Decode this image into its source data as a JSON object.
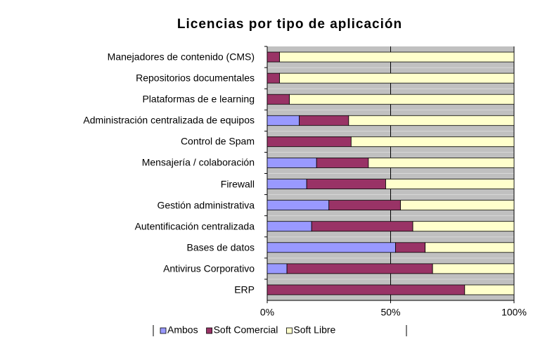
{
  "chart_data": {
    "type": "stacked_bar_horizontal",
    "title": "Licencias por tipo de aplicación",
    "categories": [
      "Manejadores de contenido (CMS)",
      "Repositorios documentales",
      "Plataformas de e learning",
      "Administración centralizada de equipos",
      "Control de Spam",
      "Mensajería / colaboración",
      "Firewall",
      "Gestión administrativa",
      "Autentificación centralizada",
      "Bases de datos",
      "Antivirus Corporativo",
      "ERP"
    ],
    "series": [
      {
        "name": "Ambos",
        "color": "#9999ff",
        "values": [
          0,
          0,
          0,
          13,
          0,
          20,
          16,
          25,
          18,
          52,
          8,
          0
        ]
      },
      {
        "name": "Soft Comercial",
        "color": "#993366",
        "values": [
          5,
          5,
          9,
          20,
          34,
          21,
          32,
          29,
          41,
          12,
          59,
          80
        ]
      },
      {
        "name": "Soft Libre",
        "color": "#ffffcc",
        "values": [
          95,
          95,
          91,
          67,
          66,
          59,
          52,
          46,
          41,
          36,
          33,
          20
        ]
      }
    ],
    "xlim": [
      0,
      100
    ],
    "xticks": [
      {
        "value": 0,
        "label": "0%"
      },
      {
        "value": 50,
        "label": "50%"
      },
      {
        "value": 100,
        "label": "100%"
      }
    ],
    "grid": true,
    "legend": "bottom"
  }
}
